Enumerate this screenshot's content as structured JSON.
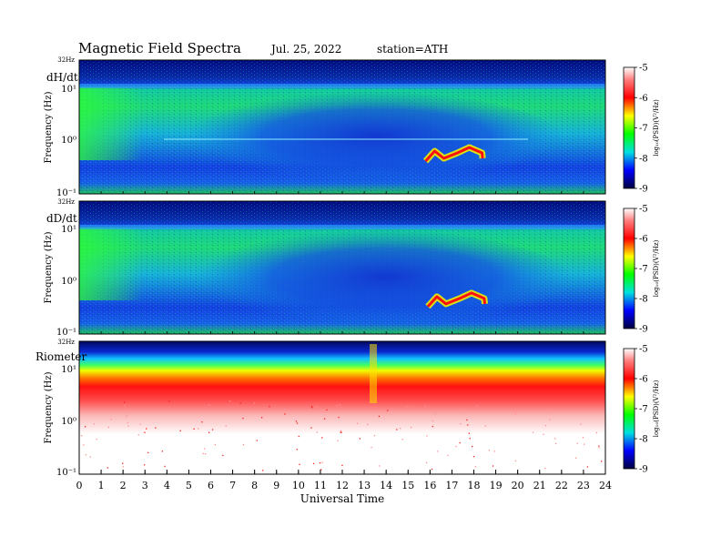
{
  "header": {
    "title": "Magnetic Field Spectra",
    "date": "Jul. 25, 2022",
    "station": "station=ATH"
  },
  "colorbar_ticks": [
    "-5",
    "-6",
    "-7",
    "-8",
    "-9"
  ],
  "colorbar_label": "log₁₀(PSD)(V²/Hz)",
  "colors": {
    "deep_blue": "#00008b",
    "blue": "#1a3cff",
    "cyan": "#16c8d0",
    "green": "#16e84a",
    "yellow": "#f0f000",
    "red": "#ff1010",
    "light_red": "#f8a0a0"
  },
  "chart_data": [
    {
      "type": "heatmap",
      "panel_label": "dH/dt",
      "top_label": "32Hz",
      "ylabel": "Frequency (Hz)",
      "y_tick_labels": [
        "10¹",
        "10⁰",
        "10⁻¹"
      ],
      "xlim": [
        0,
        24
      ],
      "color_scale": [
        -9,
        -5
      ],
      "background_level": -7.5,
      "features": [
        {
          "kind": "band",
          "level": -8.8,
          "f_top": 32,
          "f_bottom": 10
        },
        {
          "kind": "band",
          "level": -7.0,
          "f_top": 9,
          "f_bottom": 0.1
        },
        {
          "kind": "burst",
          "t_start": 15.8,
          "t_end": 18.4,
          "f": 0.5,
          "level": -6.2
        }
      ]
    },
    {
      "type": "heatmap",
      "panel_label": "dD/dt",
      "top_label": "32Hz",
      "ylabel": "Frequency (Hz)",
      "y_tick_labels": [
        "10¹",
        "10⁰",
        "10⁻¹"
      ],
      "xlim": [
        0,
        24
      ],
      "color_scale": [
        -9,
        -5
      ],
      "background_level": -7.5,
      "features": [
        {
          "kind": "band",
          "level": -8.8,
          "f_top": 32,
          "f_bottom": 10
        },
        {
          "kind": "band",
          "level": -7.0,
          "f_top": 9,
          "f_bottom": 0.1
        },
        {
          "kind": "burst",
          "t_start": 15.9,
          "t_end": 18.5,
          "f": 0.4,
          "level": -6.2
        }
      ]
    },
    {
      "type": "heatmap",
      "panel_label": "Riometer",
      "top_label": "32Hz",
      "ylabel": "Frequency (Hz)",
      "y_tick_labels": [
        "10¹",
        "10⁰",
        "10⁻¹"
      ],
      "xlim": [
        0,
        24
      ],
      "xlabel": "Universal Time",
      "x_ticks": [
        0,
        1,
        2,
        3,
        4,
        5,
        6,
        7,
        8,
        9,
        10,
        11,
        12,
        13,
        14,
        15,
        16,
        17,
        18,
        19,
        20,
        21,
        22,
        23,
        24
      ],
      "color_scale": [
        -9,
        -5
      ],
      "features": [
        {
          "kind": "band",
          "level": -8.5,
          "f_top": 32,
          "f_bottom": 20
        },
        {
          "kind": "band",
          "level": -7.0,
          "f_top": 20,
          "f_bottom": 12
        },
        {
          "kind": "band",
          "level": -6.2,
          "f_top": 12,
          "f_bottom": 4
        },
        {
          "kind": "band",
          "level": -5.5,
          "f_top": 4,
          "f_bottom": 2
        },
        {
          "kind": "spike",
          "t": 13.4,
          "level": -6.0
        }
      ]
    }
  ]
}
